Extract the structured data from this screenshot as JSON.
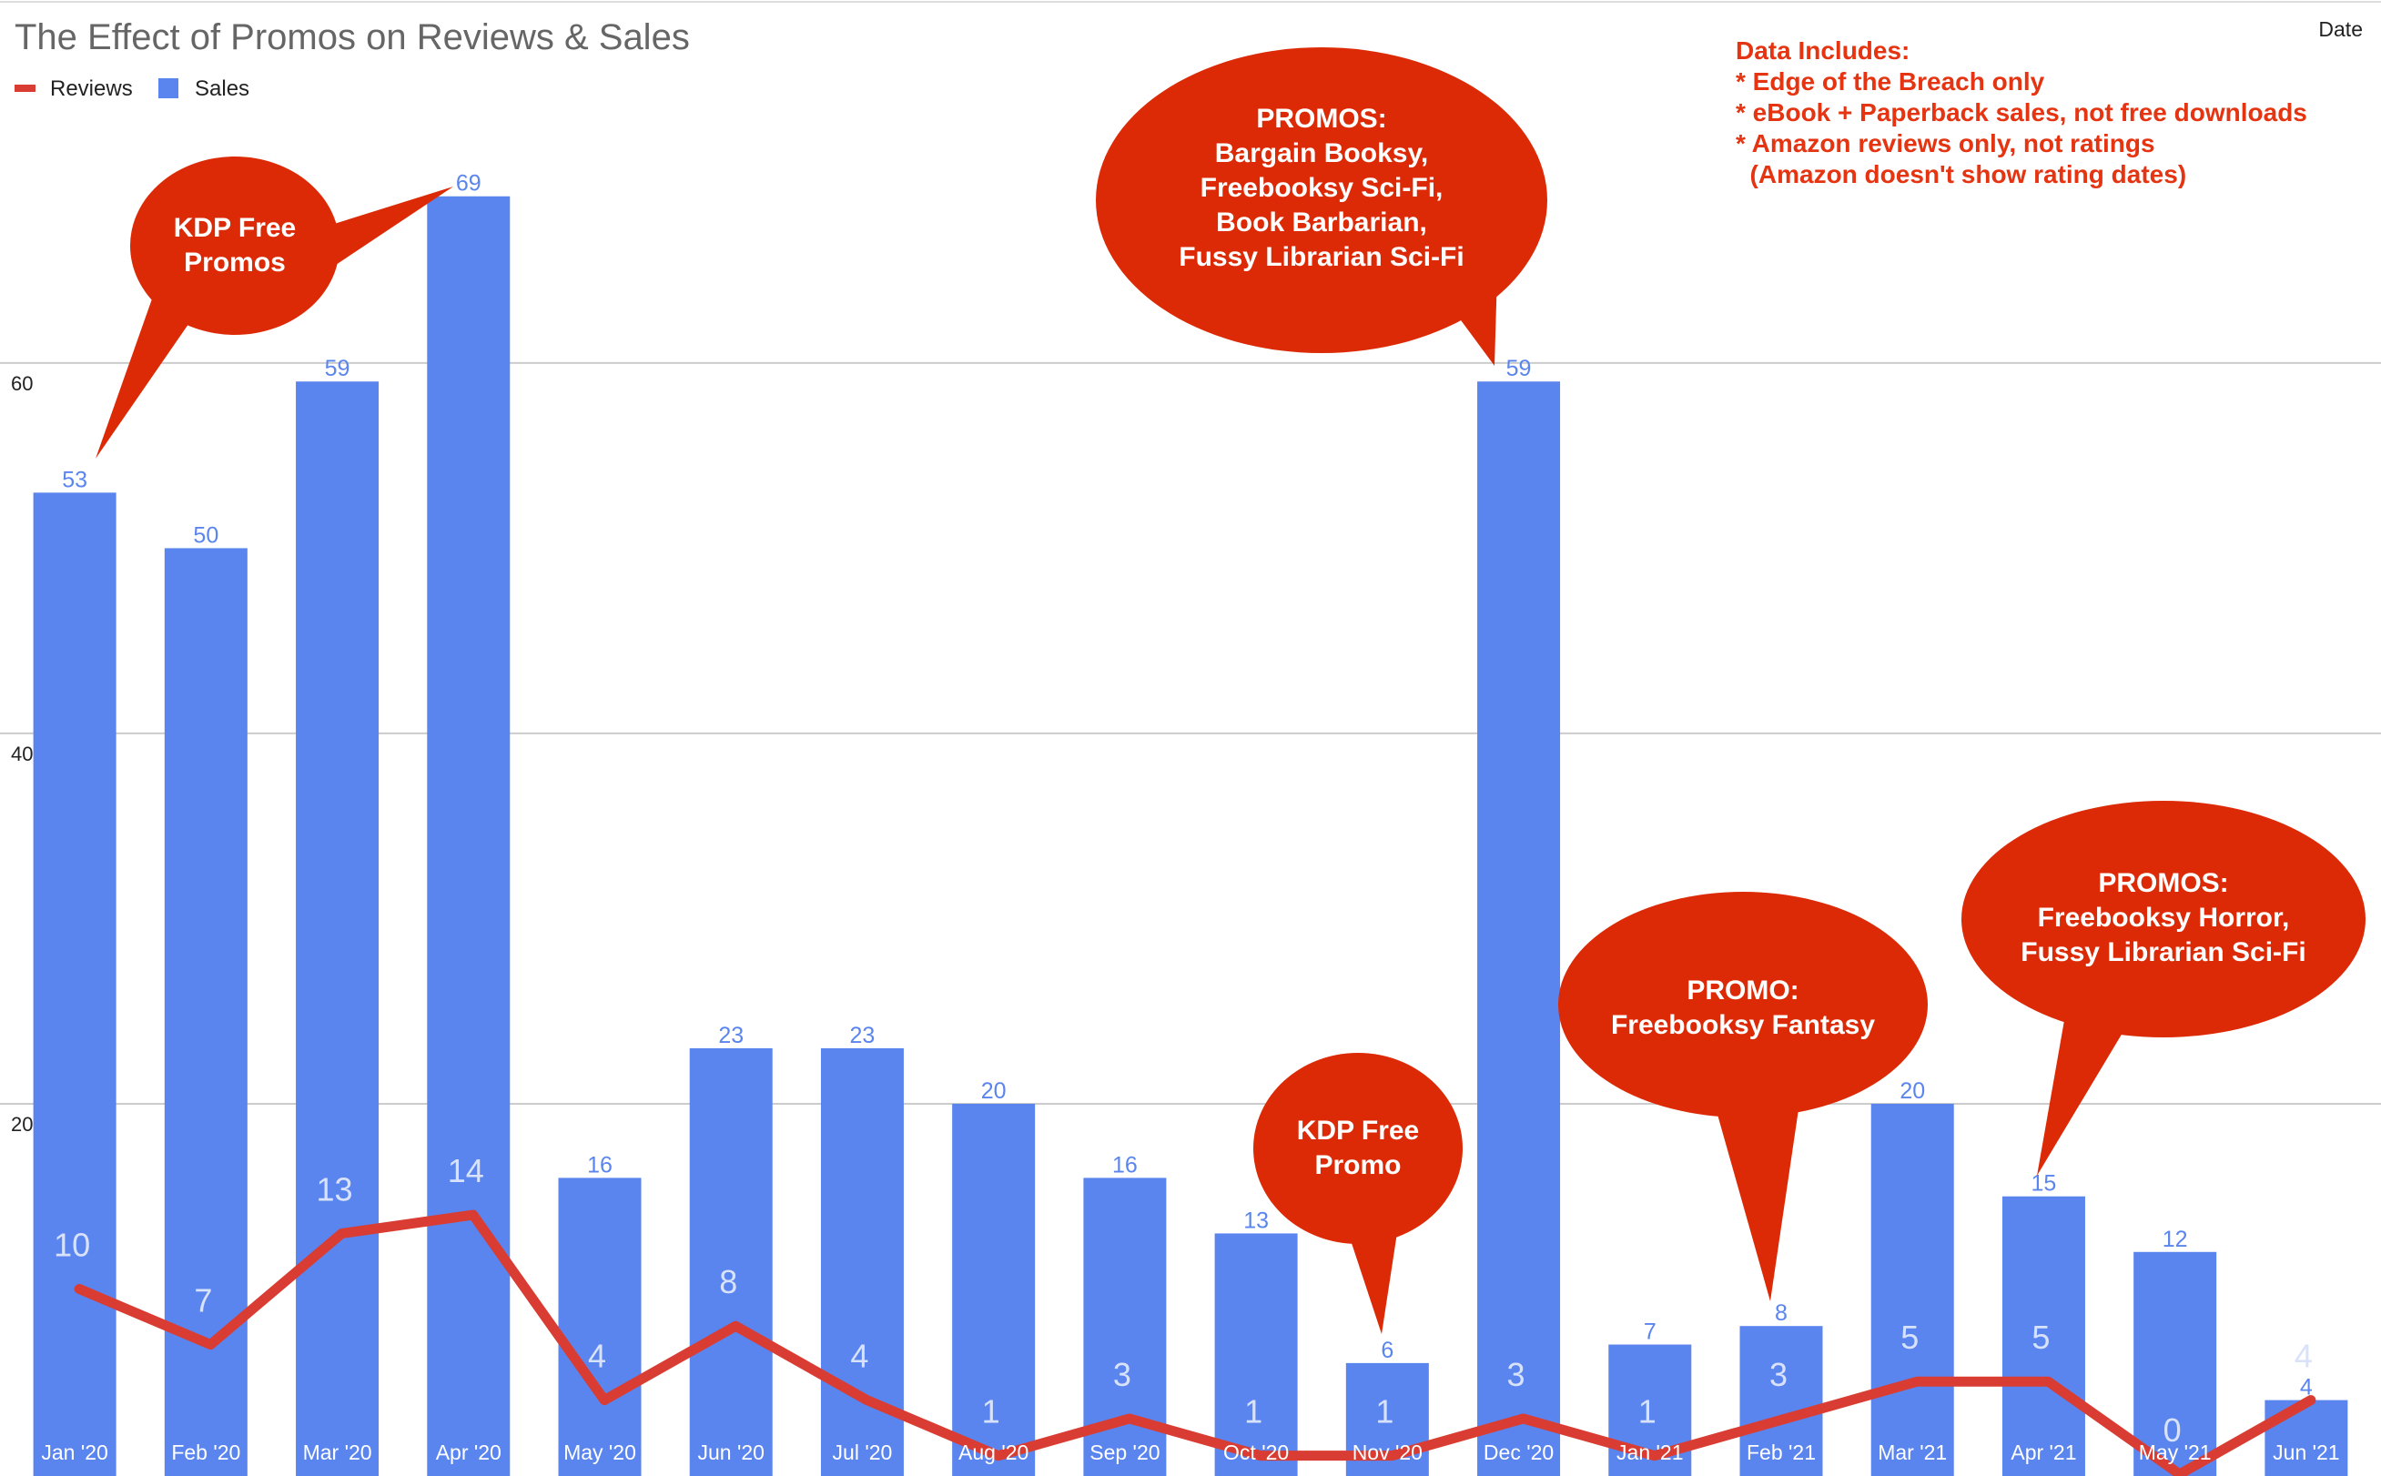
{
  "chart_data": {
    "type": "bar",
    "title": "The Effect of Promos on Reviews & Sales",
    "xlabel": "Date",
    "ylabel": "",
    "categories": [
      "Jan '20",
      "Feb '20",
      "Mar '20",
      "Apr '20",
      "May '20",
      "Jun '20",
      "Jul '20",
      "Aug '20",
      "Sep '20",
      "Oct '20",
      "Nov '20",
      "Dec '20",
      "Jan '21",
      "Feb '21",
      "Mar '21",
      "Apr '21",
      "May '21",
      "Jun '21"
    ],
    "ylim": [
      0,
      79.6
    ],
    "yticks": [
      "20",
      "40",
      "60"
    ],
    "grid": true,
    "legend_position": "top-left",
    "series": [
      {
        "name": "Reviews",
        "type": "line",
        "color": "#d93c32",
        "values": [
          10,
          7,
          13,
          14,
          4,
          8,
          4,
          1,
          3,
          1,
          1,
          3,
          1,
          3,
          5,
          5,
          0,
          4
        ]
      },
      {
        "name": "Sales",
        "type": "bar",
        "color": "#5b85ee",
        "values": [
          53,
          50,
          59,
          69,
          16,
          23,
          23,
          20,
          16,
          13,
          6,
          59,
          7,
          8,
          20,
          15,
          12,
          4
        ]
      }
    ],
    "annotations": [
      {
        "lines": [
          "KDP Free",
          "Promos"
        ]
      },
      {
        "lines": [
          "PROMOS:",
          "Bargain Booksy,",
          "Freebooksy Sci-Fi,",
          "Book Barbarian,",
          "Fussy Librarian Sci-Fi"
        ]
      },
      {
        "lines": [
          "KDP Free",
          "Promo"
        ]
      },
      {
        "lines": [
          "PROMO:",
          "Freebooksy Fantasy"
        ]
      },
      {
        "lines": [
          "PROMOS:",
          "Freebooksy Horror,",
          "Fussy Librarian Sci-Fi"
        ]
      }
    ],
    "notes": [
      "Data Includes:",
      "* Edge of the Breach only",
      "* eBook + Paperback sales, not free downloads",
      "* Amazon reviews only, not ratings",
      "  (Amazon doesn't show rating dates)"
    ]
  },
  "colors": {
    "bubble": "#dd2a06",
    "note": "#e53411",
    "grid": "#cccccc"
  }
}
